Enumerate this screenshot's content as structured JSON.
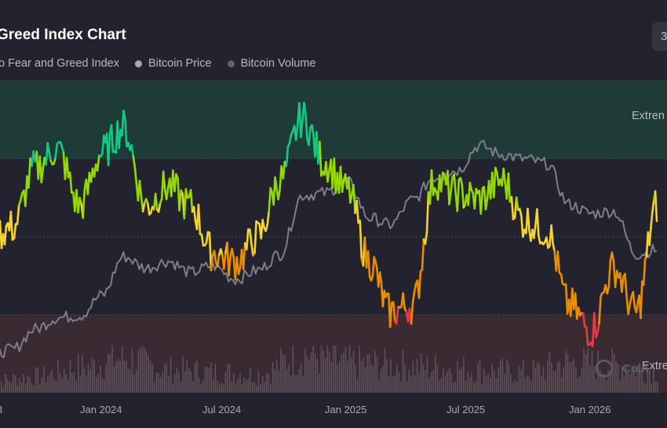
{
  "header": {
    "title": "Greed Index Chart",
    "range_button": "3"
  },
  "legend": [
    {
      "label": "to Fear and Greed Index",
      "color": "#f4b400"
    },
    {
      "label": "Bitcoin Price",
      "color": "#a6a8b6"
    },
    {
      "label": "Bitcoin Volume",
      "color": "#5f6170"
    }
  ],
  "zones": {
    "top_label": "Extren",
    "bottom_label": "Extre"
  },
  "watermark": "Coin",
  "chart_data": {
    "type": "line",
    "title": "Greed Index Chart",
    "x_ticks": [
      "3",
      "Jan 2024",
      "Jul 2024",
      "Jan 2025",
      "Jul 2025",
      "Jan 2026"
    ],
    "y_range": [
      0,
      100
    ],
    "bands": [
      {
        "name": "Extreme Greed",
        "from": 75,
        "to": 100,
        "color": "#1f3b37"
      },
      {
        "name": "Extreme Fear",
        "from": 0,
        "to": 25,
        "color": "#3a2a32"
      }
    ],
    "grid": true,
    "series": [
      {
        "name": "Fear and Greed Index",
        "x": [
          "2023-09",
          "2023-10",
          "2023-11",
          "2023-12",
          "2024-01",
          "2024-02",
          "2024-03",
          "2024-04",
          "2024-05",
          "2024-06",
          "2024-07",
          "2024-08",
          "2024-09",
          "2024-10",
          "2024-11",
          "2024-12",
          "2025-01",
          "2025-02",
          "2025-03",
          "2025-04",
          "2025-05",
          "2025-06",
          "2025-07",
          "2025-08",
          "2025-09",
          "2025-10",
          "2025-11",
          "2025-12",
          "2026-01",
          "2026-02",
          "2026-03"
        ],
        "values": [
          50,
          53,
          72,
          78,
          60,
          77,
          85,
          60,
          66,
          60,
          45,
          42,
          50,
          68,
          88,
          74,
          65,
          42,
          26,
          28,
          68,
          64,
          62,
          68,
          55,
          52,
          28,
          20,
          40,
          26,
          60
        ]
      },
      {
        "name": "Bitcoin Price",
        "x": [
          "2023-09",
          "2023-10",
          "2023-11",
          "2023-12",
          "2024-01",
          "2024-02",
          "2024-03",
          "2024-04",
          "2024-05",
          "2024-06",
          "2024-07",
          "2024-08",
          "2024-09",
          "2024-10",
          "2024-11",
          "2024-12",
          "2025-01",
          "2025-02",
          "2025-03",
          "2025-04",
          "2025-05",
          "2025-06",
          "2025-07",
          "2025-08",
          "2025-09",
          "2025-10",
          "2025-11",
          "2025-12",
          "2026-01",
          "2026-02",
          "2026-03"
        ],
        "values": [
          26000,
          28000,
          37000,
          42000,
          43000,
          52000,
          69000,
          64000,
          67000,
          62000,
          65000,
          59000,
          63000,
          70000,
          96000,
          97000,
          102000,
          86000,
          83000,
          94000,
          104000,
          107000,
          118000,
          114000,
          112000,
          110000,
          92000,
          88000,
          89000,
          70000,
          72000
        ]
      },
      {
        "name": "Bitcoin Volume",
        "x": [
          "2023-09",
          "2023-11",
          "2024-01",
          "2024-03",
          "2024-05",
          "2024-07",
          "2024-09",
          "2024-11",
          "2025-01",
          "2025-03",
          "2025-05",
          "2025-07",
          "2025-09",
          "2025-11",
          "2026-01",
          "2026-03"
        ],
        "values": [
          10,
          14,
          22,
          30,
          20,
          18,
          16,
          34,
          26,
          24,
          22,
          20,
          18,
          26,
          24,
          20
        ]
      }
    ]
  }
}
